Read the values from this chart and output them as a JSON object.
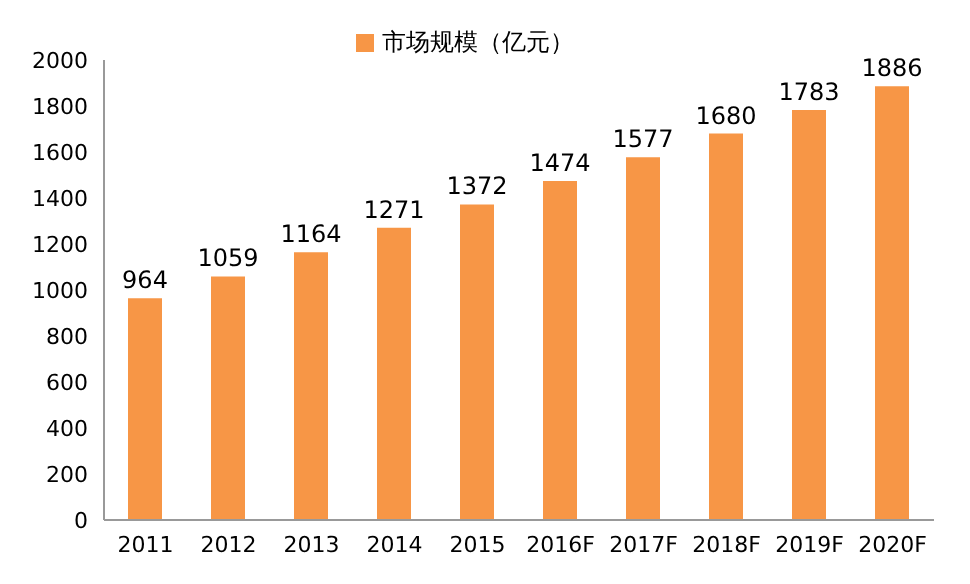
{
  "chart_data": {
    "type": "bar",
    "categories": [
      "2011",
      "2012",
      "2013",
      "2014",
      "2015",
      "2016F",
      "2017F",
      "2018F",
      "2019F",
      "2020F"
    ],
    "series": [
      {
        "name": "市场规模（亿元）",
        "color": "#f79646",
        "values": [
          964,
          1059,
          1164,
          1271,
          1372,
          1474,
          1577,
          1680,
          1783,
          1886
        ]
      }
    ],
    "ylim": [
      0,
      2000
    ],
    "yticks": [
      0,
      200,
      400,
      600,
      800,
      1000,
      1200,
      1400,
      1600,
      1800,
      2000
    ],
    "grid": false,
    "legend": "top",
    "data_labels": true
  }
}
